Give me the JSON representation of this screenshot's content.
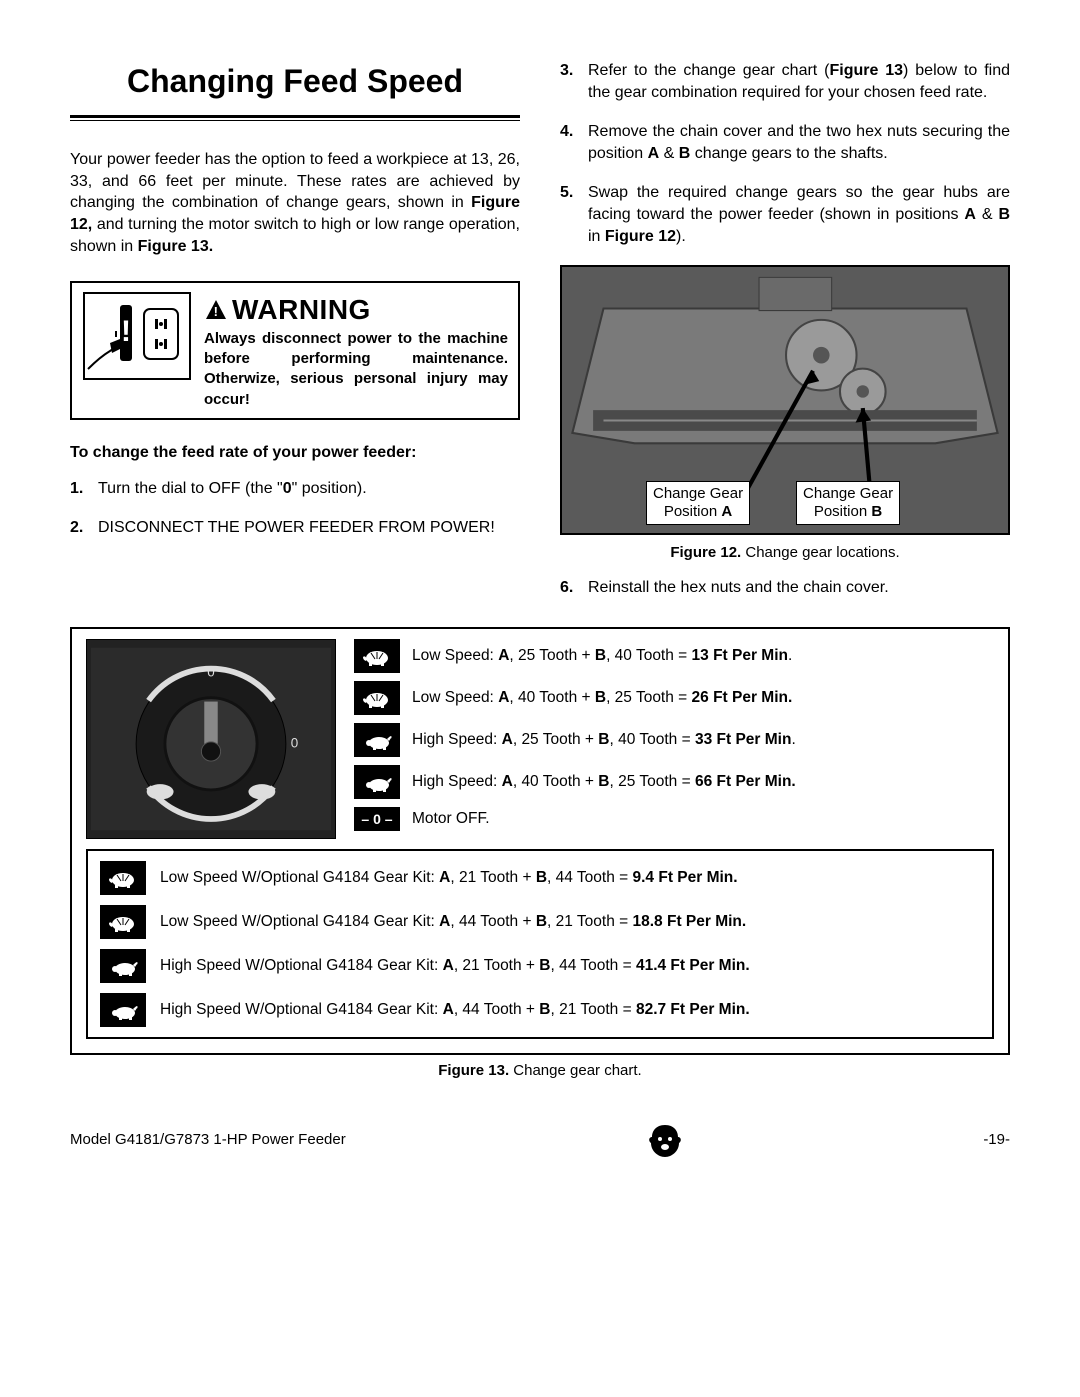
{
  "title": "Changing Feed Speed",
  "intro_html": "Your power feeder has the option to feed a workpiece at 13, 26, 33, and 66 feet per minute. These rates are achieved by changing the combination of change gears, shown in <b>Figure 12,</b> and turning the motor switch to high or low range operation, shown in <b>Figure 13.</b>",
  "warning": {
    "heading": "WARNING",
    "body": "Always disconnect power to the machine before performing maintenance. Otherwize, serious personal injury may occur!"
  },
  "subhead": "To change the feed rate of your power feeder:",
  "steps_left": [
    {
      "num": "1.",
      "html": "Turn the dial to OFF (the \"<b>0</b>\" position)."
    },
    {
      "num": "2.",
      "html": "DISCONNECT THE POWER FEEDER FROM POWER!"
    }
  ],
  "steps_right": [
    {
      "num": "3.",
      "html": "Refer to the change gear chart (<b>Figure 13</b>) below to find the gear combination required for your chosen feed rate."
    },
    {
      "num": "4.",
      "html": "Remove the chain cover and the two hex nuts securing the position <b>A</b> & <b>B</b> change gears to the shafts."
    },
    {
      "num": "5.",
      "html": "Swap the required change gears so the gear hubs are facing toward the power feeder (shown in positions <b>A</b> & <b>B</b> in  <b>Figure 12</b>)."
    }
  ],
  "fig12": {
    "labelA_html": "Change Gear<br>Position <b>A</b>",
    "labelB_html": "Change Gear<br>Position <b>B</b>",
    "caption_html": "<b>Figure 12.</b> Change gear locations."
  },
  "step6": {
    "num": "6.",
    "html": "Reinstall the hex nuts and the chain cover."
  },
  "chart": {
    "rows_top": [
      {
        "icon": "turtle",
        "html": "Low Speed: <b>A</b>, 25 Tooth + <b>B</b>, 40 Tooth = <b>13 Ft Per Min</b>."
      },
      {
        "icon": "turtle",
        "html": "Low Speed: <b>A</b>, 40 Tooth + <b>B</b>, 25 Tooth = <b>26 Ft Per Min.</b>"
      },
      {
        "icon": "rabbit",
        "html": "High Speed: <b>A</b>, 25 Tooth + <b>B</b>, 40 Tooth = <b>33 Ft Per Min</b>."
      },
      {
        "icon": "rabbit",
        "html": "High Speed: <b>A</b>, 40 Tooth + <b>B</b>, 25 Tooth = <b>66 Ft Per Min.</b>"
      },
      {
        "icon": "motoroff",
        "html": "Motor OFF."
      }
    ],
    "rows_sub": [
      {
        "icon": "turtle",
        "html": "Low Speed W/Optional G4184 Gear Kit: <b>A</b>, 21 Tooth + <b>B</b>, 44 Tooth = <b>9.4 Ft Per Min.</b>"
      },
      {
        "icon": "turtle",
        "html": "Low Speed W/Optional G4184 Gear Kit: <b>A</b>, 44 Tooth + <b>B</b>, 21 Tooth = <b>18.8 Ft Per Min.</b>"
      },
      {
        "icon": "rabbit",
        "html": "High Speed W/Optional G4184 Gear Kit: <b>A</b>, 21 Tooth + <b>B</b>, 44 Tooth = <b>41.4 Ft Per Min.</b>"
      },
      {
        "icon": "rabbit",
        "html": "High Speed W/Optional G4184 Gear Kit: <b>A</b>, 44 Tooth + <b>B</b>, 21 Tooth = <b>82.7 Ft Per Min.</b>"
      }
    ],
    "caption_html": "<b>Figure 13.</b> Change gear chart."
  },
  "footer": {
    "model": "Model G4181/G7873 1-HP Power Feeder",
    "page": "-19-"
  },
  "colors": {
    "text": "#000000",
    "bg": "#ffffff",
    "figbg": "#5a5a5a",
    "iconbg": "#000000"
  }
}
